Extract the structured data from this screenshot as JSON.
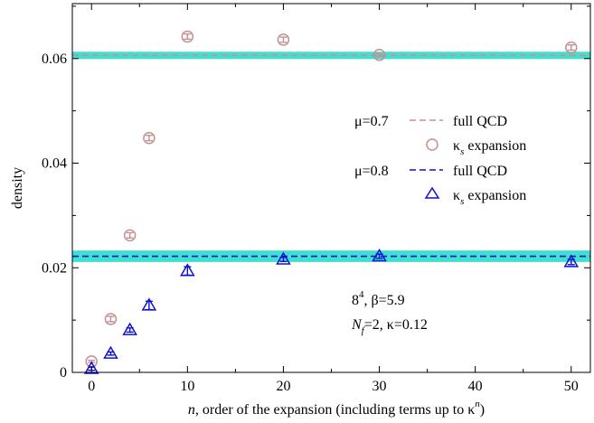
{
  "chart_data": {
    "type": "scatter",
    "xlabel": {
      "var": "n",
      "text": ", order of the expansion (including terms up to ",
      "kappa": "κ",
      "sup": "n",
      "close": ")"
    },
    "ylabel": "density",
    "xlim": [
      -2,
      52
    ],
    "ylim": [
      0,
      0.0705
    ],
    "x_ticks": [
      0,
      10,
      20,
      30,
      40,
      50
    ],
    "y_ticks": [
      0,
      0.02,
      0.04,
      0.06
    ],
    "y_tick_labels": [
      "0",
      "0.02",
      "0.04",
      "0.06"
    ],
    "grid": false,
    "bands": [
      {
        "center": 0.0606,
        "half_width": 0.0007,
        "color": "#40e0d0",
        "line_color": "#c89090"
      },
      {
        "center": 0.0222,
        "half_width": 0.0011,
        "color": "#40e0d0",
        "line_color": "#1010d0"
      }
    ],
    "series": [
      {
        "marker": "circle",
        "color": "#c49090",
        "x": [
          0,
          2,
          4,
          6,
          10,
          20,
          30,
          50
        ],
        "y": [
          0.0021,
          0.0102,
          0.0262,
          0.0448,
          0.0642,
          0.0636,
          0.0607,
          0.0621
        ],
        "err": [
          0.0002,
          0.0005,
          0.0005,
          0.0005,
          0.0005,
          0.0005,
          0.0003,
          0.0005
        ]
      },
      {
        "marker": "triangle",
        "color": "#1010d0",
        "x": [
          0,
          2,
          4,
          6,
          10,
          20,
          30,
          50
        ],
        "y": [
          0.0007,
          0.0036,
          0.0081,
          0.0128,
          0.0194,
          0.0216,
          0.0222,
          0.0211
        ],
        "err": [
          0.0003,
          0.0003,
          0.0004,
          0.0008,
          0.0008,
          0.0004,
          0.0004,
          0.0005
        ]
      }
    ],
    "legend": {
      "group1": {
        "mu_label": "μ=0.7",
        "line_label": "full QCD",
        "kappa": "κ",
        "sub": "s",
        "marker_label": " expansion"
      },
      "group2": {
        "mu_label": "μ=0.8",
        "line_label": "full QCD",
        "kappa": "κ",
        "sub": "s",
        "marker_label": " expansion"
      }
    },
    "annotation": {
      "lattice_base": "8",
      "lattice_sup": "4",
      "beta_text": ", β=5.9",
      "nf_var": "N",
      "nf_sub": "f",
      "nf_text": "=2, κ=0.12"
    }
  }
}
